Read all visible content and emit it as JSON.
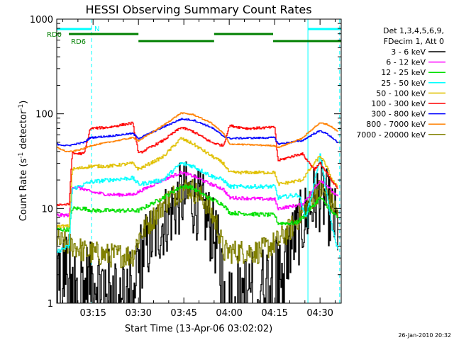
{
  "chart_data": {
    "type": "line",
    "title": "HESSI Observing Summary Count Rates",
    "xlabel": "Start Time (13-Apr-06 03:02:02)",
    "ylabel_main": "Count Rate (s",
    "ylabel_sup1": "-1",
    "ylabel_mid": " detector",
    "ylabel_sup2": "-1",
    "ylabel_end": ")",
    "x_axis": {
      "unit": "minutes after 03:00 UT",
      "range": [
        3.0,
        97.0
      ],
      "ticks": [
        {
          "v": 15,
          "label": "03:15"
        },
        {
          "v": 30,
          "label": "03:30"
        },
        {
          "v": 45,
          "label": "03:45"
        },
        {
          "v": 60,
          "label": "04:00"
        },
        {
          "v": 75,
          "label": "04:15"
        },
        {
          "v": 90,
          "label": "04:30"
        }
      ]
    },
    "y_axis": {
      "scale": "log",
      "range": [
        1,
        1000
      ],
      "ticks": [
        {
          "v": 1,
          "label": "1"
        },
        {
          "v": 10,
          "label": "10"
        },
        {
          "v": 100,
          "label": "100"
        },
        {
          "v": 1000,
          "label": "1000"
        }
      ]
    },
    "legend": {
      "position": "right",
      "header": [
        "Det 1,3,4,5,6,9,",
        "FDecim 1, Att 0"
      ]
    },
    "series": [
      {
        "name": "3 - 6 keV",
        "color": "#000000",
        "noise": 0.9,
        "drop": 2.0,
        "points": [
          [
            3,
            2.5
          ],
          [
            9,
            2.2
          ],
          [
            12,
            1.9
          ],
          [
            20,
            1.6
          ],
          [
            28,
            1.6
          ],
          [
            30,
            3.0
          ],
          [
            38,
            7.0
          ],
          [
            44,
            13
          ],
          [
            47,
            13.5
          ],
          [
            52,
            9.0
          ],
          [
            56,
            4.0
          ],
          [
            58,
            1.5
          ],
          [
            65,
            1.4
          ],
          [
            70,
            1.6
          ],
          [
            76,
            2.2
          ],
          [
            80,
            4.0
          ],
          [
            85,
            8.0
          ],
          [
            88,
            12
          ],
          [
            90,
            14
          ],
          [
            92,
            11
          ],
          [
            94,
            8.0
          ],
          [
            96,
            6.0
          ]
        ]
      },
      {
        "name": "6 - 12 keV",
        "color": "#ff00ff",
        "noise": 0.04,
        "points": [
          [
            3,
            8.5
          ],
          [
            7,
            8.5
          ],
          [
            8,
            17
          ],
          [
            12,
            16
          ],
          [
            14,
            15
          ],
          [
            20,
            14
          ],
          [
            28,
            14
          ],
          [
            30,
            15
          ],
          [
            38,
            20
          ],
          [
            44,
            24
          ],
          [
            48,
            22
          ],
          [
            54,
            18
          ],
          [
            58,
            16
          ],
          [
            60,
            13
          ],
          [
            75,
            12.5
          ],
          [
            76,
            10
          ],
          [
            84,
            11
          ],
          [
            88,
            16
          ],
          [
            90,
            20
          ],
          [
            92,
            18
          ],
          [
            94,
            15
          ],
          [
            96,
            13
          ]
        ]
      },
      {
        "name": "12 - 25 keV",
        "color": "#00e000",
        "noise": 0.05,
        "points": [
          [
            3,
            6
          ],
          [
            7,
            6
          ],
          [
            8,
            10
          ],
          [
            12,
            10
          ],
          [
            15,
            9.5
          ],
          [
            30,
            9.5
          ],
          [
            38,
            13
          ],
          [
            44,
            17
          ],
          [
            47,
            17
          ],
          [
            53,
            13
          ],
          [
            58,
            11
          ],
          [
            60,
            9
          ],
          [
            75,
            8.5
          ],
          [
            76,
            7
          ],
          [
            82,
            7
          ],
          [
            84,
            8
          ],
          [
            88,
            11
          ],
          [
            90,
            13
          ],
          [
            92,
            11
          ],
          [
            94,
            9
          ],
          [
            96,
            8
          ]
        ]
      },
      {
        "name": "25 - 50 keV",
        "color": "#00ffff",
        "noise": 0.05,
        "points": [
          [
            3,
            3.5
          ],
          [
            7,
            4
          ],
          [
            8,
            16
          ],
          [
            12,
            18
          ],
          [
            14,
            19
          ],
          [
            20,
            20
          ],
          [
            28,
            21
          ],
          [
            30,
            18
          ],
          [
            38,
            20
          ],
          [
            44,
            30
          ],
          [
            48,
            28
          ],
          [
            54,
            22
          ],
          [
            58,
            20
          ],
          [
            60,
            17
          ],
          [
            75,
            17
          ],
          [
            76,
            13
          ],
          [
            83,
            14
          ],
          [
            85,
            8
          ],
          [
            87,
            13
          ],
          [
            90,
            37
          ],
          [
            92,
            15
          ],
          [
            94,
            6
          ],
          [
            96,
            3.5
          ]
        ]
      },
      {
        "name": "50 - 100 keV",
        "color": "#e0c000",
        "noise": 0.04,
        "points": [
          [
            3,
            6.5
          ],
          [
            7,
            6.5
          ],
          [
            8,
            26
          ],
          [
            12,
            27
          ],
          [
            14,
            28
          ],
          [
            20,
            28
          ],
          [
            28,
            30
          ],
          [
            30,
            26
          ],
          [
            38,
            35
          ],
          [
            44,
            55
          ],
          [
            48,
            48
          ],
          [
            54,
            36
          ],
          [
            58,
            30
          ],
          [
            60,
            24
          ],
          [
            75,
            24
          ],
          [
            76,
            18
          ],
          [
            84,
            20
          ],
          [
            88,
            30
          ],
          [
            90,
            36
          ],
          [
            92,
            28
          ],
          [
            94,
            20
          ],
          [
            96,
            16
          ]
        ]
      },
      {
        "name": "100 - 300 keV",
        "color": "#ff0000",
        "noise": 0.03,
        "points": [
          [
            3,
            11
          ],
          [
            7,
            11
          ],
          [
            8,
            38
          ],
          [
            12,
            38
          ],
          [
            14,
            70
          ],
          [
            20,
            72
          ],
          [
            28,
            80
          ],
          [
            30,
            38
          ],
          [
            38,
            52
          ],
          [
            44,
            72
          ],
          [
            48,
            65
          ],
          [
            54,
            50
          ],
          [
            58,
            46
          ],
          [
            60,
            75
          ],
          [
            66,
            70
          ],
          [
            75,
            72
          ],
          [
            76,
            32
          ],
          [
            80,
            35
          ],
          [
            84,
            38
          ],
          [
            88,
            26
          ],
          [
            90,
            30
          ],
          [
            92,
            24
          ],
          [
            94,
            19
          ],
          [
            96,
            16
          ]
        ]
      },
      {
        "name": "300 - 800 keV",
        "color": "#0000ff",
        "noise": 0.02,
        "points": [
          [
            3,
            48
          ],
          [
            6,
            46
          ],
          [
            8,
            47
          ],
          [
            12,
            50
          ],
          [
            14,
            56
          ],
          [
            20,
            58
          ],
          [
            28,
            62
          ],
          [
            30,
            55
          ],
          [
            38,
            72
          ],
          [
            44,
            88
          ],
          [
            48,
            86
          ],
          [
            54,
            72
          ],
          [
            58,
            58
          ],
          [
            60,
            55
          ],
          [
            75,
            56
          ],
          [
            76,
            48
          ],
          [
            84,
            52
          ],
          [
            88,
            62
          ],
          [
            90,
            66
          ],
          [
            92,
            62
          ],
          [
            94,
            56
          ],
          [
            96,
            48
          ]
        ]
      },
      {
        "name": "800 - 7000 keV",
        "color": "#ff8000",
        "noise": 0.015,
        "points": [
          [
            3,
            44
          ],
          [
            6,
            40
          ],
          [
            8,
            40
          ],
          [
            12,
            43
          ],
          [
            14,
            46
          ],
          [
            20,
            50
          ],
          [
            28,
            56
          ],
          [
            30,
            52
          ],
          [
            38,
            75
          ],
          [
            44,
            102
          ],
          [
            48,
            98
          ],
          [
            54,
            80
          ],
          [
            58,
            62
          ],
          [
            60,
            48
          ],
          [
            75,
            46
          ],
          [
            76,
            44
          ],
          [
            84,
            55
          ],
          [
            88,
            72
          ],
          [
            90,
            80
          ],
          [
            92,
            78
          ],
          [
            94,
            72
          ],
          [
            96,
            64
          ]
        ]
      },
      {
        "name": "7000 - 20000 keV",
        "color": "#808000",
        "noise": 0.3,
        "drop": 1.3,
        "points": [
          [
            3,
            4.5
          ],
          [
            9,
            4
          ],
          [
            12,
            3.5
          ],
          [
            20,
            3.2
          ],
          [
            28,
            3.2
          ],
          [
            30,
            5
          ],
          [
            38,
            11
          ],
          [
            44,
            16
          ],
          [
            47,
            16.5
          ],
          [
            52,
            12
          ],
          [
            56,
            6.5
          ],
          [
            58,
            3.5
          ],
          [
            70,
            3.5
          ],
          [
            76,
            4.5
          ],
          [
            80,
            6
          ],
          [
            85,
            10
          ],
          [
            88,
            14
          ],
          [
            90,
            16
          ],
          [
            92,
            14
          ],
          [
            94,
            11
          ],
          [
            96,
            9
          ]
        ]
      }
    ],
    "annotations": {
      "night_color": "#00ffff",
      "night_label": "N",
      "night_bars": [
        [
          3,
          14.5
        ],
        [
          86,
          97
        ]
      ],
      "night_solid": [
        3,
        86
      ],
      "night_dashed": [
        14.5,
        96.5
      ],
      "rd_color": "#008000",
      "rd_labels": [
        "RD0",
        "RD6"
      ],
      "rd_bars": [
        [
          7,
          30
        ],
        [
          30,
          55
        ],
        [
          55,
          74.5
        ],
        [
          74.5,
          97
        ]
      ],
      "rd_bar_y": [
        0,
        1,
        0,
        1
      ]
    }
  },
  "footer": {
    "timestamp": "26-Jan-2010 20:32"
  }
}
